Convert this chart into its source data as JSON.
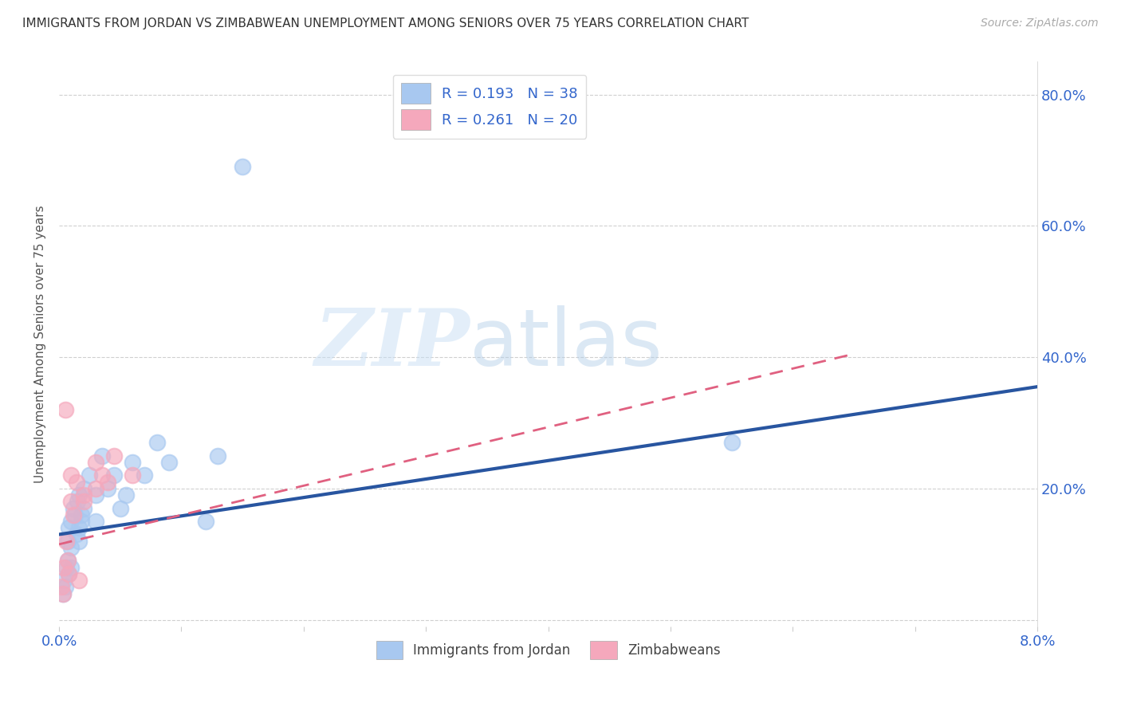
{
  "title": "IMMIGRANTS FROM JORDAN VS ZIMBABWEAN UNEMPLOYMENT AMONG SENIORS OVER 75 YEARS CORRELATION CHART",
  "source": "Source: ZipAtlas.com",
  "ylabel": "Unemployment Among Seniors over 75 years",
  "x_ticks": [
    0.0,
    0.01,
    0.02,
    0.03,
    0.04,
    0.05,
    0.06,
    0.07,
    0.08
  ],
  "x_tick_labels": [
    "0.0%",
    "",
    "",
    "",
    "",
    "",
    "",
    "",
    "8.0%"
  ],
  "y_ticks": [
    0.0,
    0.2,
    0.4,
    0.6,
    0.8
  ],
  "y_tick_labels_right": [
    "",
    "20.0%",
    "40.0%",
    "60.0%",
    "80.0%"
  ],
  "xlim": [
    0.0,
    0.08
  ],
  "ylim": [
    -0.01,
    0.85
  ],
  "legend1_label": "R = 0.193   N = 38",
  "legend2_label": "R = 0.261   N = 20",
  "legend_bottom1": "Immigrants from Jordan",
  "legend_bottom2": "Zimbabweans",
  "watermark_zip": "ZIP",
  "watermark_atlas": "atlas",
  "jordan_color": "#a8c8f0",
  "zimbabwe_color": "#f5a8bc",
  "jordan_line_color": "#2855a0",
  "zimbabwe_line_color": "#e06080",
  "jordan_x": [
    0.0003,
    0.0004,
    0.0005,
    0.0006,
    0.0007,
    0.0007,
    0.0008,
    0.0008,
    0.001,
    0.001,
    0.001,
    0.0012,
    0.0013,
    0.0014,
    0.0015,
    0.0016,
    0.0016,
    0.0016,
    0.0018,
    0.0018,
    0.002,
    0.002,
    0.0025,
    0.003,
    0.003,
    0.0035,
    0.004,
    0.0045,
    0.005,
    0.0055,
    0.006,
    0.007,
    0.008,
    0.009,
    0.012,
    0.013,
    0.015,
    0.055
  ],
  "jordan_y": [
    0.04,
    0.06,
    0.05,
    0.08,
    0.09,
    0.12,
    0.14,
    0.07,
    0.15,
    0.11,
    0.08,
    0.17,
    0.16,
    0.13,
    0.18,
    0.14,
    0.19,
    0.12,
    0.16,
    0.15,
    0.2,
    0.17,
    0.22,
    0.19,
    0.15,
    0.25,
    0.2,
    0.22,
    0.17,
    0.19,
    0.24,
    0.22,
    0.27,
    0.24,
    0.15,
    0.25,
    0.69,
    0.27
  ],
  "zimbabwe_x": [
    0.0002,
    0.0003,
    0.0004,
    0.0005,
    0.0006,
    0.0007,
    0.0008,
    0.001,
    0.001,
    0.0012,
    0.0014,
    0.0016,
    0.002,
    0.002,
    0.003,
    0.003,
    0.0035,
    0.004,
    0.0045,
    0.006
  ],
  "zimbabwe_y": [
    0.05,
    0.04,
    0.08,
    0.32,
    0.12,
    0.09,
    0.07,
    0.22,
    0.18,
    0.16,
    0.21,
    0.06,
    0.19,
    0.18,
    0.24,
    0.2,
    0.22,
    0.21,
    0.25,
    0.22
  ],
  "jordan_line_x0": 0.0,
  "jordan_line_y0": 0.13,
  "jordan_line_x1": 0.08,
  "jordan_line_y1": 0.355,
  "zimbabwe_line_x0": 0.0,
  "zimbabwe_line_y0": 0.115,
  "zimbabwe_line_x1": 0.065,
  "zimbabwe_line_y1": 0.405
}
